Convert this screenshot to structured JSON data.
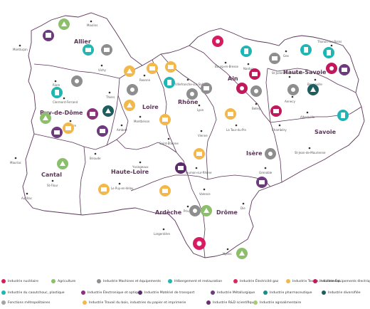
{
  "departments": {
    "allier": "Allier",
    "puy_de_dome": "Puy-de-Dôme",
    "loire": "Loire",
    "rhone": "Rhône",
    "ain": "Ain",
    "haute_savoie": "Haute-Savoie",
    "savoie": "Savoie",
    "isere": "Isère",
    "drome": "Drôme",
    "ardeche": "Ardèche",
    "haute_loire": "Haute-Loire",
    "cantal": "Cantal"
  },
  "cities": {
    "moulins": "Moulins",
    "montlucon": "Montluçon",
    "vichy": "Vichy",
    "riom": "Riom",
    "clermont": "Clermont-Ferrand",
    "thiers": "Thiers",
    "issoire": "Issoire",
    "ambert": "Ambert",
    "roanne": "Roanne",
    "montbrison": "Montbrison",
    "saint_etienne": "Saint-Étienne",
    "villefranche": "Villefranche-sur-Saône",
    "lyon": "Lyon",
    "vienne": "Vienne",
    "bourg": "Bourg-en-Bresse",
    "nantua": "Nantua",
    "gex": "Gex",
    "belley": "Belley",
    "la_tour_du_pin": "La Tour-du-Pin",
    "thonon": "Thonon-les-Bains",
    "st_julien": "St-Julien-en-Genevois",
    "bonneville": "Bonneville",
    "annecy": "Annecy",
    "albertville": "Albertville",
    "chambery": "Chambéry",
    "st_jean": "St-Jean-de-Maurienne",
    "grenoble": "Grenoble",
    "tournon": "Tournon-sur-Rhône",
    "valence": "Valence",
    "privas": "Privas",
    "die": "Die",
    "nyons": "Nyons",
    "largentiere": "Largentière",
    "le_puy": "Le Puy-en-Velay",
    "yssingeaux": "Yssingeaux",
    "brioude": "Brioude",
    "mauriac": "Mauriac",
    "st_flour": "St-Flour",
    "aurillac": "Aurillac"
  },
  "legend": [
    {
      "label": "Industrie nucléaire",
      "color": "#d81b60"
    },
    {
      "label": "Agriculture",
      "color": "#8bbf6a"
    },
    {
      "label": "Industrie Machines et équipements",
      "color": "#8e8e8e"
    },
    {
      "label": "Hébergement et restauration",
      "color": "#26b6b0"
    },
    {
      "label": "Industrie Électricité gaz",
      "color": "#e0245e"
    },
    {
      "label": "Industrie Textile, habillement",
      "color": "#f2b84b"
    },
    {
      "label": "Industrie Équipements électriques",
      "color": "#c0185a"
    },
    {
      "label": "Industrie du caoutchouc, plastique",
      "color": "#1fb5b5"
    },
    {
      "label": "Industrie Électronique et optique",
      "color": "#8b2f7e"
    },
    {
      "label": "Industrie Matériel de transport",
      "color": "#5a2a6a"
    },
    {
      "label": "Industrie Métallurgique",
      "color": "#6e3a7e"
    },
    {
      "label": "Industrie pharmaceutique",
      "color": "#1a8c8c"
    },
    {
      "label": "Industrie diversifiée",
      "color": "#1f5e5e"
    },
    {
      "label": "Fonctions métropolitaines",
      "color": "#a3a3a3"
    },
    {
      "label": "Industrie Travail du bois, industries du papier et imprimerie",
      "color": "#f2b84b"
    },
    {
      "label": "Industrie R&D scientifique",
      "color": "#6a2f6e"
    },
    {
      "label": "Industrie agroalimentaire",
      "color": "#a8c97a"
    }
  ]
}
